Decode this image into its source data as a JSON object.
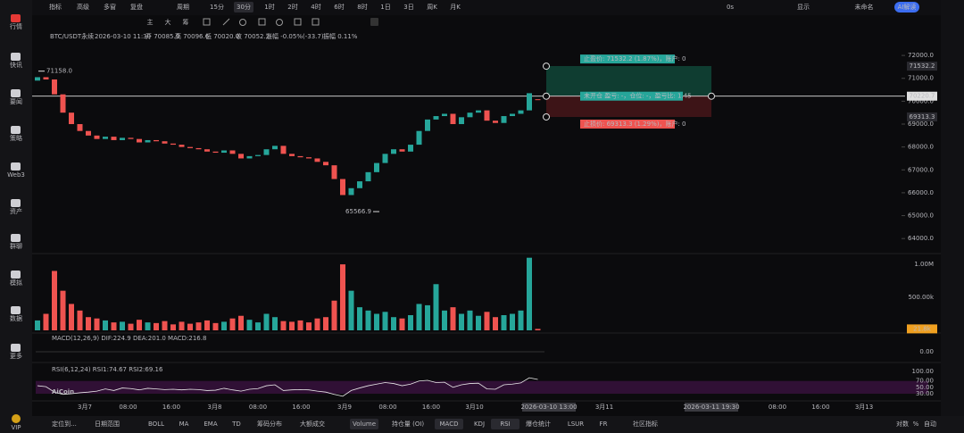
{
  "sidebar": {
    "items": [
      "行情",
      "快讯",
      "要闻",
      "策略",
      "Web3",
      "资产",
      "群聊",
      "模拟",
      "数据",
      "更多"
    ],
    "vip": "VIP"
  },
  "toolbar": {
    "left": [
      "指标",
      "高级",
      "多窗",
      "复盘",
      "周期"
    ],
    "periods": [
      "15分",
      "30分",
      "1时",
      "2时",
      "4时",
      "6时",
      "8时",
      "1日",
      "3日",
      "周K",
      "月K"
    ],
    "active_period": 1,
    "right": [
      "0s",
      "显示",
      "未命名",
      "AI解读"
    ]
  },
  "drawing_tools": [
    "主",
    "大",
    "筹"
  ],
  "info": {
    "symbol": "BTC/USDT永续",
    "time": "2026-03-10 11:30",
    "fields": [
      "开 70085.9",
      "高 70096.6",
      "低 70020.0",
      "收 70052.2",
      "涨幅 -0.05%(-33.7)",
      "振幅 0.11%"
    ]
  },
  "orders": {
    "take_profit": "止盈价: 71532.2 (1.87%)，账户: 0",
    "position": "未开仓 盈亏: -，仓位: -，盈亏比: 1.45",
    "stop_loss": "止损价: 69313.3 (1.29%)，账户: 0"
  },
  "indicators": {
    "macd": "MACD(12,26,9) DIF:224.9 DEA:201.0 MACD:216.8",
    "rsi": "RSI(6,12,24) RSI1:74.67 RSI2:69.16"
  },
  "watermark": "AiCoin",
  "crosshair": {
    "left": "2026-03-10 13:00",
    "right": "2026-03-11 19:30"
  },
  "bottom_bar": {
    "left": [
      "定位到...",
      "日期范围"
    ],
    "tools": [
      "BOLL",
      "MA",
      "EMA",
      "TD",
      "筹码分布",
      "大额成交",
      "Volume",
      "持仓量 (OI)",
      "MACD",
      "KDJ",
      "RSI",
      "爆仓统计",
      "LSUR",
      "FR",
      "社区指标"
    ],
    "active": [
      6,
      8,
      10
    ],
    "right": [
      "对数",
      "%",
      "自动"
    ]
  },
  "chart_data": {
    "type": "candlestick",
    "up_color": "#26a69a",
    "down_color": "#ef5350",
    "ylim": [
      63500,
      72550
    ],
    "yticks": [
      {
        "value": 64000,
        "label": "64000.0"
      },
      {
        "value": 65000,
        "label": "65000.0"
      },
      {
        "value": 66000,
        "label": "66000.0"
      },
      {
        "value": 67000,
        "label": "67000.0"
      },
      {
        "value": 68000,
        "label": "68000.0"
      },
      {
        "value": 69000,
        "label": "69000.0"
      },
      {
        "value": 70000,
        "label": "70000.0"
      },
      {
        "value": 71000,
        "label": "71000.0"
      },
      {
        "value": 72000,
        "label": "72000.0"
      }
    ],
    "levels": {
      "take_profit": 71532.2,
      "current": 70220.7,
      "stop_loss": 69313.3
    },
    "high": {
      "value": 71158,
      "label": "71158.0"
    },
    "low": {
      "value": 65566.9,
      "label": "65566.9"
    },
    "opens": [
      70900,
      71050,
      70950,
      70300,
      69500,
      69000,
      68700,
      68500,
      68350,
      68450,
      68300,
      68400,
      68350,
      68200,
      68300,
      68250,
      68150,
      68100,
      68000,
      67950,
      67900,
      67800,
      67750,
      67850,
      67700,
      67500,
      67600,
      67650,
      67900,
      68050,
      67700,
      67600,
      67550,
      67500,
      67350,
      67200,
      66600,
      65900,
      66200,
      66500,
      66900,
      67300,
      67700,
      67900,
      67800,
      68100,
      68700,
      69200,
      69350,
      69450,
      69000,
      69300,
      69500,
      69600,
      69150,
      69050,
      69350,
      69450,
      69600,
      70085.9
    ],
    "closes": [
      71050,
      70950,
      70300,
      69500,
      69000,
      68700,
      68500,
      68350,
      68450,
      68300,
      68400,
      68350,
      68200,
      68300,
      68250,
      68150,
      68100,
      68000,
      67950,
      67900,
      67800,
      67750,
      67850,
      67700,
      67500,
      67600,
      67650,
      67900,
      68050,
      67700,
      67600,
      67550,
      67500,
      67350,
      67200,
      66600,
      65900,
      66200,
      66500,
      66900,
      67300,
      67700,
      67900,
      67800,
      68100,
      68700,
      69200,
      69350,
      69450,
      69000,
      69300,
      69500,
      69600,
      69150,
      69050,
      69350,
      69450,
      69600,
      70350,
      70052.2
    ],
    "volumes": [
      150000,
      250000,
      900000,
      600000,
      400000,
      300000,
      200000,
      180000,
      150000,
      120000,
      130000,
      100000,
      160000,
      120000,
      110000,
      140000,
      90000,
      130000,
      100000,
      120000,
      150000,
      110000,
      130000,
      180000,
      220000,
      160000,
      120000,
      250000,
      200000,
      140000,
      130000,
      150000,
      120000,
      180000,
      200000,
      450000,
      1000000,
      600000,
      350000,
      300000,
      250000,
      280000,
      200000,
      180000,
      230000,
      400000,
      380000,
      700000,
      300000,
      350000,
      250000,
      300000,
      220000,
      280000,
      200000,
      230000,
      250000,
      300000,
      1100000,
      21800
    ],
    "volume_ylim": [
      0,
      1150000
    ],
    "volume_yticks": [
      {
        "value": 500000,
        "label": "500.00k"
      },
      {
        "value": 1000000,
        "label": "1.00M"
      }
    ],
    "volume_last": {
      "value": 21800,
      "label": "21.8k"
    },
    "macd_yticks": [
      {
        "value": 0,
        "label": "0.00"
      }
    ],
    "rsi": [
      55,
      52,
      35,
      28,
      30,
      33,
      35,
      38,
      45,
      40,
      48,
      46,
      42,
      47,
      45,
      43,
      44,
      42,
      44,
      43,
      40,
      41,
      47,
      42,
      38,
      44,
      46,
      55,
      58,
      40,
      42,
      43,
      42,
      38,
      35,
      28,
      22,
      40,
      48,
      55,
      60,
      65,
      62,
      55,
      60,
      70,
      72,
      65,
      66,
      50,
      58,
      62,
      63,
      45,
      44,
      58,
      60,
      64,
      80,
      74.67
    ],
    "rsi_ylim": [
      0,
      100
    ],
    "rsi_yticks": [
      {
        "value": 30,
        "label": "30.00"
      },
      {
        "value": 50,
        "label": "50.00"
      },
      {
        "value": 70,
        "label": "70.00"
      },
      {
        "value": 100,
        "label": "100.00"
      }
    ],
    "x_labels": [
      "3月7",
      "08:00",
      "16:00",
      "3月8",
      "08:00",
      "16:00",
      "3月9",
      "08:00",
      "16:00",
      "3月10",
      null,
      null,
      "3月11",
      null,
      null,
      null,
      "08:00",
      "16:00",
      "3月13"
    ]
  }
}
